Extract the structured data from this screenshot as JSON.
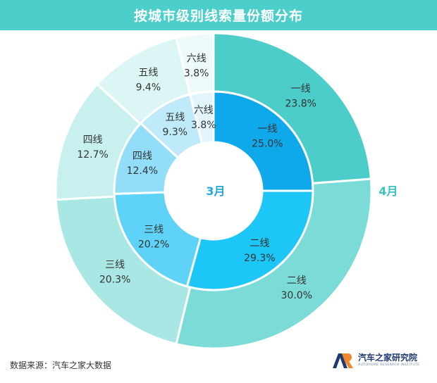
{
  "title": "按城市级别线索量份额分布",
  "source": "数据来源：汽车之家大数据",
  "logo": {
    "name": "汽车之家研究院",
    "sub": "AUTOHOME RESEARCH INSTITUTE",
    "icon": "ar-logo-icon",
    "colors": [
      "#1e3a6e",
      "#f0852b"
    ]
  },
  "chart_data": [
    {
      "type": "pie",
      "name": "3月",
      "ring": "inner",
      "categories": [
        "一线",
        "二线",
        "三线",
        "四线",
        "五线",
        "六线"
      ],
      "values": [
        25.0,
        29.3,
        20.2,
        12.4,
        9.3,
        3.8
      ],
      "labels": [
        "25.0%",
        "29.3%",
        "20.2%",
        "12.4%",
        "9.3%",
        "3.8%"
      ],
      "colors": [
        "#0fa8ea",
        "#1cc6f7",
        "#5fd3f7",
        "#92ddf8",
        "#bfeaf9",
        "#e2f5fc"
      ]
    },
    {
      "type": "pie",
      "name": "4月",
      "ring": "outer",
      "categories": [
        "一线",
        "二线",
        "三线",
        "四线",
        "五线",
        "六线"
      ],
      "values": [
        23.8,
        30.0,
        20.3,
        12.7,
        9.4,
        3.8
      ],
      "labels": [
        "23.8%",
        "30.0%",
        "20.3%",
        "12.7%",
        "9.4%",
        "3.8%"
      ],
      "colors": [
        "#4ccdc9",
        "#7bdbd6",
        "#a9e7e4",
        "#c7f0ee",
        "#dcf6f5",
        "#eefafa"
      ]
    }
  ],
  "ring_label_colors": {
    "3月": "#21a7de",
    "4月": "#37c3c0"
  }
}
